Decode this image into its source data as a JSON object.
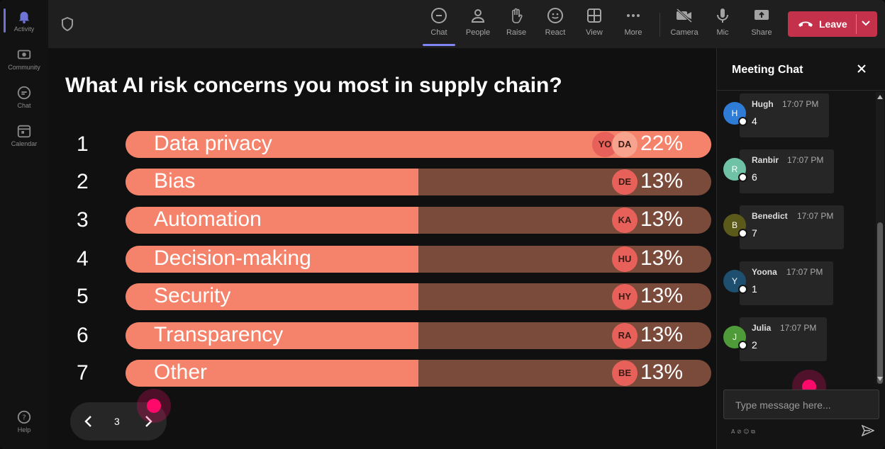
{
  "rail": {
    "items": [
      {
        "label": "Activity",
        "icon": "bell-icon"
      },
      {
        "label": "Community",
        "icon": "community-icon"
      },
      {
        "label": "Chat",
        "icon": "chat-icon"
      },
      {
        "label": "Calendar",
        "icon": "calendar-icon"
      },
      {
        "label": "Help",
        "icon": "help-icon"
      }
    ]
  },
  "toolbar": {
    "chat": "Chat",
    "people": "People",
    "raise": "Raise",
    "react": "React",
    "view": "View",
    "more": "More",
    "camera": "Camera",
    "mic": "Mic",
    "share": "Share",
    "leave": "Leave"
  },
  "poll": {
    "question": "What AI risk concerns you most in supply chain?",
    "rows": [
      {
        "num": "1",
        "label": "Data privacy",
        "pct": "22%",
        "fraction": 0.22,
        "avatars": [
          "YO",
          "DA"
        ]
      },
      {
        "num": "2",
        "label": "Bias",
        "pct": "13%",
        "fraction": 0.13,
        "avatars": [
          "DE"
        ]
      },
      {
        "num": "3",
        "label": "Automation",
        "pct": "13%",
        "fraction": 0.13,
        "avatars": [
          "KA"
        ]
      },
      {
        "num": "4",
        "label": "Decision-making",
        "pct": "13%",
        "fraction": 0.13,
        "avatars": [
          "HU"
        ]
      },
      {
        "num": "5",
        "label": "Security",
        "pct": "13%",
        "fraction": 0.13,
        "avatars": [
          "HY"
        ]
      },
      {
        "num": "6",
        "label": "Transparency",
        "pct": "13%",
        "fraction": 0.13,
        "avatars": [
          "RA"
        ]
      },
      {
        "num": "7",
        "label": "Other",
        "pct": "13%",
        "fraction": 0.13,
        "avatars": [
          "BE"
        ]
      }
    ],
    "page": "3"
  },
  "chat": {
    "title": "Meeting Chat",
    "placeholder": "Type message here...",
    "messages": [
      {
        "initial": "H",
        "name": "Hugh",
        "time": "17:07 PM",
        "text": "4",
        "color": "#2e7cd6"
      },
      {
        "initial": "R",
        "name": "Ranbir",
        "time": "17:07 PM",
        "text": "6",
        "color": "#6fc2a6"
      },
      {
        "initial": "B",
        "name": "Benedict",
        "time": "17:07 PM",
        "text": "7",
        "color": "#5c5a1a"
      },
      {
        "initial": "Y",
        "name": "Yoona",
        "time": "17:07 PM",
        "text": "1",
        "color": "#1f4f6e"
      },
      {
        "initial": "J",
        "name": "Julia",
        "time": "17:07 PM",
        "text": "2",
        "color": "#4f9b3a"
      }
    ]
  },
  "colors": {
    "accent": "#7f85f5",
    "leave": "#c4314b",
    "bar_fill": "#f5826a",
    "bar_track": "#7a4a3a",
    "cursor": "#ff0a6a"
  }
}
